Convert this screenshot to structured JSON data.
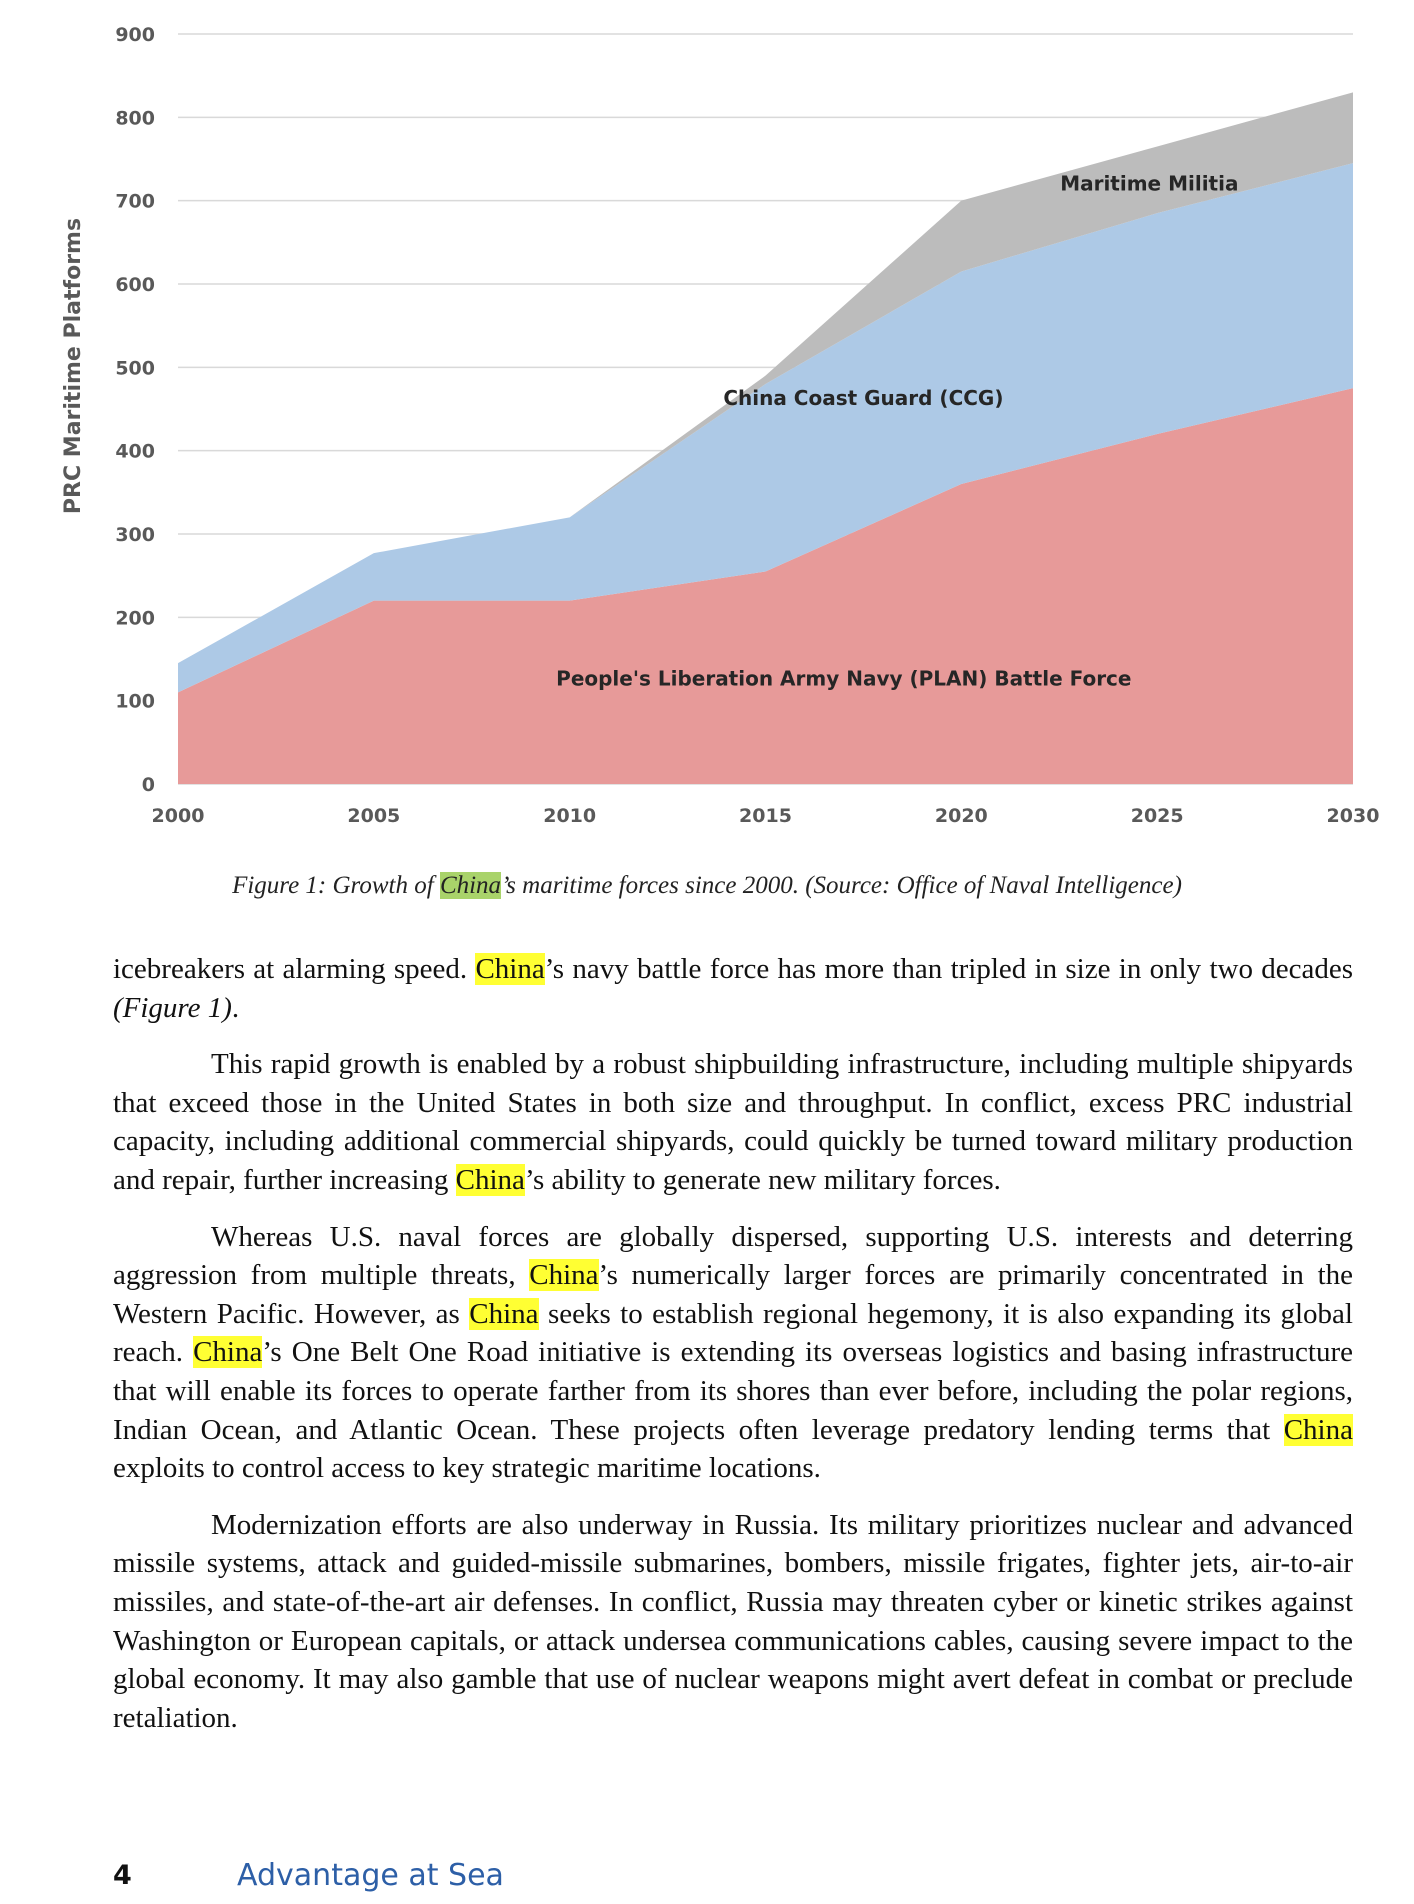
{
  "chart_data": {
    "type": "area",
    "stacked": true,
    "ylabel": "PRC Maritime Platforms",
    "ylim": [
      0,
      900
    ],
    "yticks": [
      0,
      100,
      200,
      300,
      400,
      500,
      600,
      700,
      800,
      900
    ],
    "x": [
      2000,
      2005,
      2010,
      2015,
      2020,
      2025,
      2030
    ],
    "xlim": [
      2000,
      2030
    ],
    "grid": true,
    "series": [
      {
        "name": "People's Liberation Army Navy (PLAN) Battle Force",
        "color": "#e79a99",
        "values": [
          110,
          220,
          220,
          255,
          360,
          420,
          475
        ]
      },
      {
        "name": "China Coast Guard (CCG)",
        "color": "#adc9e6",
        "values": [
          35,
          57,
          100,
          225,
          255,
          265,
          270
        ]
      },
      {
        "name": "Maritime Militia",
        "color": "#bcbcbc",
        "values": [
          0,
          0,
          0,
          10,
          85,
          80,
          85
        ]
      }
    ]
  },
  "caption": {
    "prefix": "Figure 1: Growth of ",
    "highlight": "China",
    "suffix": "’s maritime forces since 2000. (Source: Office of Naval Intelligence)"
  },
  "paragraphs": [
    {
      "indent": false,
      "parts": [
        {
          "t": "icebreakers at alarming speed. "
        },
        {
          "t": "China",
          "hl": true
        },
        {
          "t": "’s navy battle force has more than tripled in size in only two decades "
        },
        {
          "t": "(Figure 1)",
          "it": true
        },
        {
          "t": "."
        }
      ]
    },
    {
      "indent": true,
      "parts": [
        {
          "t": "This rapid growth is enabled by a robust shipbuilding infrastructure, including multiple shipyards that exceed those in the United States in both size and throughput. In conflict, excess PRC industrial capacity, including additional commercial shipyards, could quickly be turned toward military production and repair, further increasing "
        },
        {
          "t": "China",
          "hl": true
        },
        {
          "t": "’s ability to generate new military forces."
        }
      ]
    },
    {
      "indent": true,
      "parts": [
        {
          "t": "Whereas U.S. naval forces are globally dispersed, supporting U.S. interests and deterring aggression from multiple threats, "
        },
        {
          "t": "China",
          "hl": true
        },
        {
          "t": "’s numerically larger forces are primarily concentrated in the Western Pacific. However, as "
        },
        {
          "t": "China",
          "hl": true
        },
        {
          "t": " seeks to establish regional hegemony, it is also expanding its global reach. "
        },
        {
          "t": "China",
          "hl": true
        },
        {
          "t": "’s One Belt One Road initiative is extending its overseas logistics and basing infrastructure that will enable its forces to operate farther from its shores than ever before, including the polar regions, Indian Ocean, and Atlantic Ocean. These projects often leverage predatory lending terms that "
        },
        {
          "t": "China",
          "hl": true
        },
        {
          "t": " exploits to control access to key strategic maritime locations."
        }
      ]
    },
    {
      "indent": true,
      "parts": [
        {
          "t": "Modernization efforts are also underway in Russia. Its military prioritizes nuclear and advanced missile systems, attack and guided-missile submarines, bombers, missile frigates, fighter jets, air-to-air missiles, and state-of-the-art air defenses. In conflict, Russia may threaten cyber or kinetic strikes against Washington or European capitals, or attack undersea communications cables, causing severe impact to the global economy. It may also gamble that use of nuclear weapons might avert defeat in combat or preclude retaliation."
        }
      ]
    }
  ],
  "footer": {
    "page_number": "4",
    "title": "Advantage at Sea"
  }
}
